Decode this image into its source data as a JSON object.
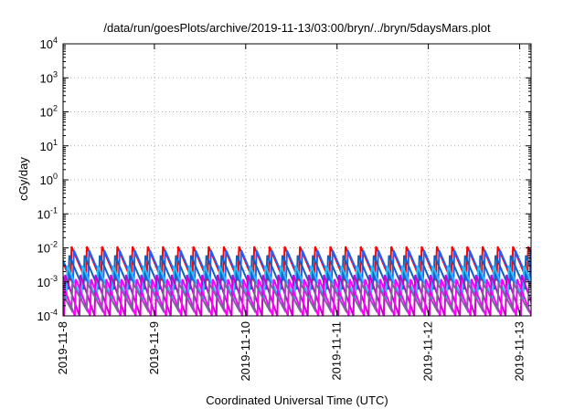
{
  "chart_data": {
    "type": "line",
    "title": "/data/run/goesPlots/archive/2019-11-13/03:00/bryn/../bryn/5daysMars.plot",
    "xlabel": "Coordinated Universal Time (UTC)",
    "ylabel": "cGy/day",
    "yscale": "log",
    "ylim": [
      0.0001,
      10000
    ],
    "xlim": [
      "2019-11-08 00:00",
      "2019-11-13 03:00"
    ],
    "grid": true,
    "y_ticks": [
      {
        "base": "10",
        "exp": "-4",
        "value": 0.0001
      },
      {
        "base": "10",
        "exp": "-3",
        "value": 0.001
      },
      {
        "base": "10",
        "exp": "-2",
        "value": 0.01
      },
      {
        "base": "10",
        "exp": "-1",
        "value": 0.1
      },
      {
        "base": "10",
        "exp": "0",
        "value": 1
      },
      {
        "base": "10",
        "exp": "1",
        "value": 10
      },
      {
        "base": "10",
        "exp": "2",
        "value": 100
      },
      {
        "base": "10",
        "exp": "3",
        "value": 1000
      },
      {
        "base": "10",
        "exp": "4",
        "value": 10000
      }
    ],
    "x_ticks": [
      {
        "label": "2019-11-8",
        "value": "2019-11-08"
      },
      {
        "label": "2019-11-9",
        "value": "2019-11-09"
      },
      {
        "label": "2019-11-10",
        "value": "2019-11-10"
      },
      {
        "label": "2019-11-11",
        "value": "2019-11-11"
      },
      {
        "label": "2019-11-12",
        "value": "2019-11-12"
      },
      {
        "label": "2019-11-13",
        "value": "2019-11-13"
      }
    ],
    "series": [
      {
        "color": "#ff0000",
        "phase_hours": 2.0,
        "peak": 0.011,
        "trough": 0.0011
      },
      {
        "color": "#2060ff",
        "phase_hours": 2.6,
        "peak": 0.0085,
        "trough": 0.0009
      },
      {
        "color": "#1060c0",
        "phase_hours": 1.4,
        "peak": 0.006,
        "trough": 0.0006
      },
      {
        "color": "#20c0ff",
        "phase_hours": 0.9,
        "peak": 0.003,
        "trough": 0.0003
      },
      {
        "color": "#d000d0",
        "phase_hours": 0.3,
        "peak": 0.0016,
        "trough": 0.0001
      },
      {
        "color": "#ff00ff",
        "phase_hours": 3.1,
        "peak": 0.0012,
        "trough": 0.0001
      },
      {
        "color": "#8060a0",
        "phase_hours": 2.2,
        "peak": 0.0009,
        "trough": 0.00015
      }
    ],
    "oscillation_period_hours": 4.0
  }
}
